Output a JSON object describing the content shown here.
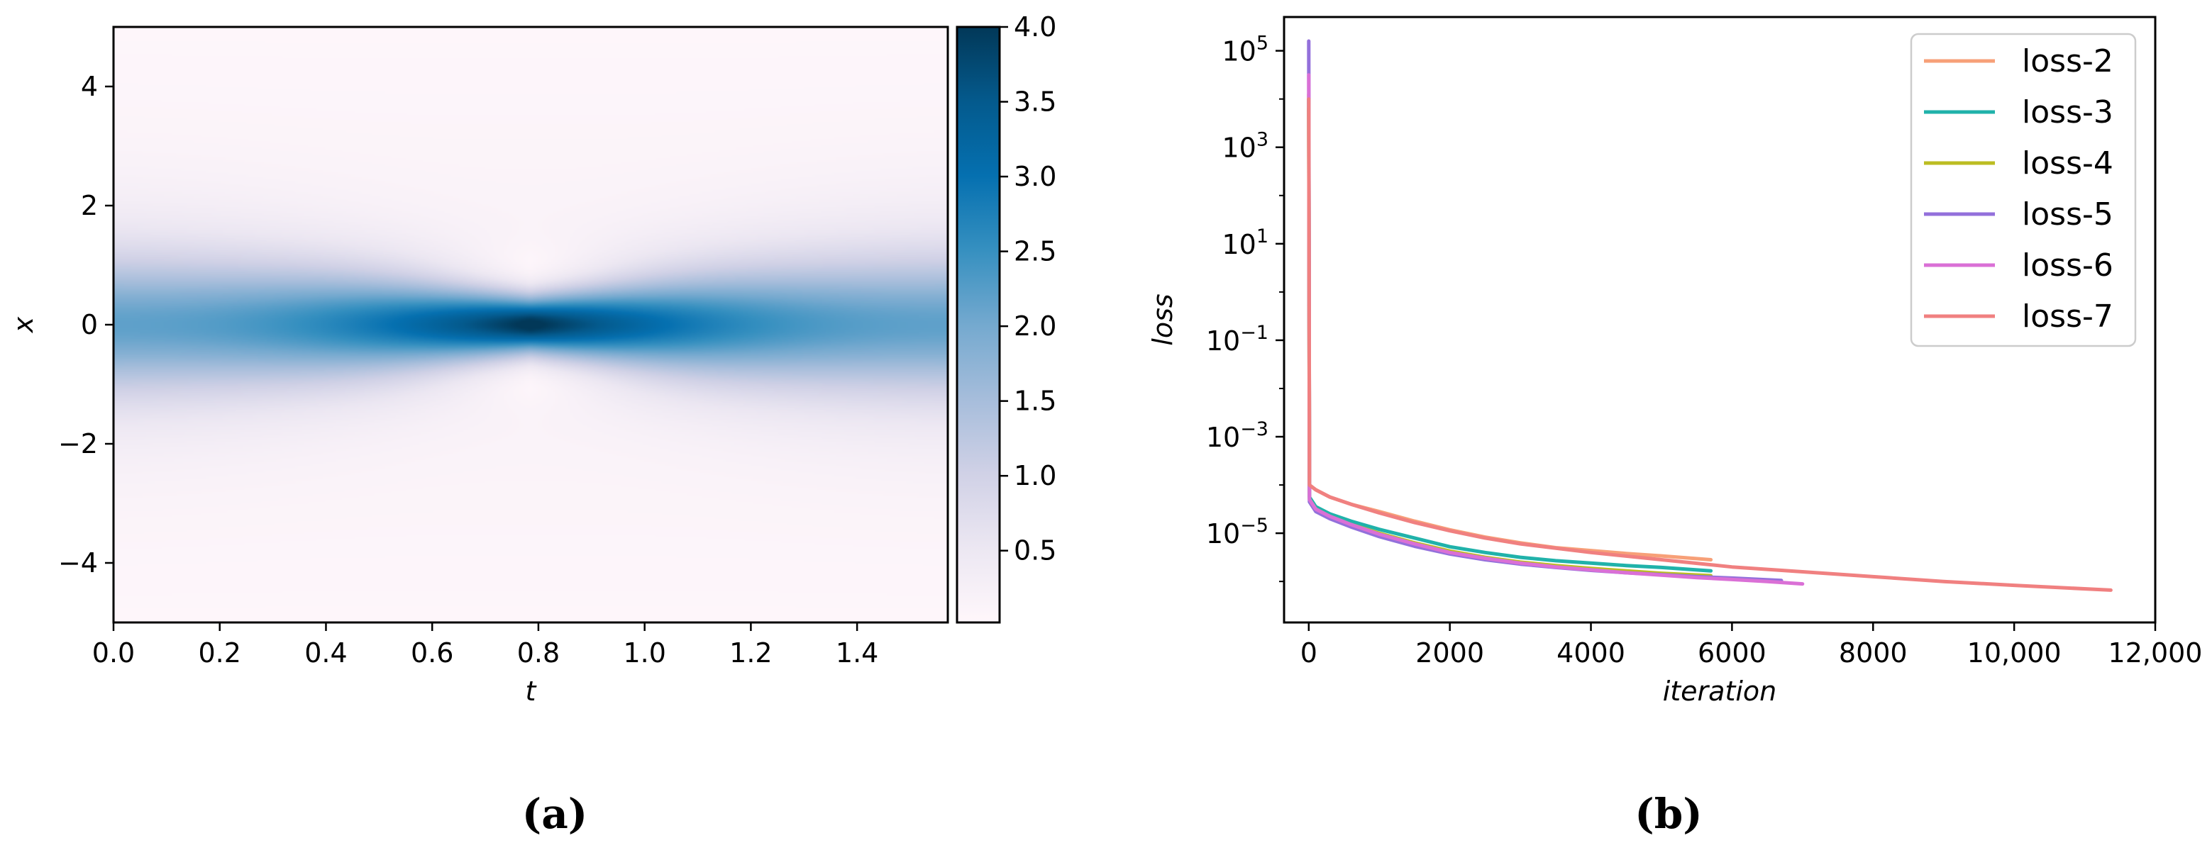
{
  "chart_data": [
    {
      "type": "heatmap",
      "panel_label": "(a)",
      "xlabel": "t",
      "ylabel": "x",
      "xlim": [
        0,
        1.5708
      ],
      "ylim": [
        -5,
        5
      ],
      "xticks": [
        "0.0",
        "0.2",
        "0.4",
        "0.6",
        "0.8",
        "1.0",
        "1.2",
        "1.4"
      ],
      "xtick_values": [
        0,
        0.2,
        0.4,
        0.6,
        0.8,
        1.0,
        1.2,
        1.4
      ],
      "yticks": [
        "4",
        "2",
        "0",
        "−2",
        "−4"
      ],
      "ytick_values": [
        4,
        2,
        0,
        -2,
        -4
      ],
      "colorbar": {
        "colormap": "PuBu",
        "range": [
          0.02,
          4.0
        ],
        "ticks": [
          "4.0",
          "3.5",
          "3.0",
          "2.5",
          "2.0",
          "1.5",
          "1.0",
          "0.5"
        ],
        "tick_values": [
          4.0,
          3.5,
          3.0,
          2.5,
          2.0,
          1.5,
          1.0,
          0.5
        ]
      },
      "field": {
        "peak_value": 4.0,
        "peak_t": 0.785,
        "peak_x": 0,
        "edge_value": 2.0,
        "description_level_at_t0_x0": 2.0
      },
      "colors": {
        "low": "#fff7fb",
        "mid": "#a6bddb",
        "high": "#023858"
      }
    },
    {
      "type": "line",
      "panel_label": "(b)",
      "xlabel": "iteration",
      "ylabel": "loss",
      "xlim": [
        -350,
        12000
      ],
      "ylim_log10": [
        -6.85,
        5.7
      ],
      "yscale": "log",
      "grid": false,
      "legend_position": "top-right",
      "xticks": [
        "0",
        "2000",
        "4000",
        "6000",
        "8000",
        "10,000",
        "12,000"
      ],
      "xtick_values": [
        0,
        2000,
        4000,
        6000,
        8000,
        10000,
        12000
      ],
      "yticks": [
        {
          "base": "10",
          "exp": "5",
          "value": 5
        },
        {
          "base": "10",
          "exp": "3",
          "value": 3
        },
        {
          "base": "10",
          "exp": "1",
          "value": 1
        },
        {
          "base": "10",
          "exp": "−1",
          "value": -1
        },
        {
          "base": "10",
          "exp": "−3",
          "value": -3
        },
        {
          "base": "10",
          "exp": "−5",
          "value": -5
        }
      ],
      "series": [
        {
          "name": "loss-2",
          "color": "#f7a078",
          "x": [
            0,
            10,
            100,
            300,
            600,
            1000,
            1500,
            2000,
            2500,
            3000,
            3500,
            4000,
            4500,
            5000,
            5700
          ],
          "y_log10": [
            4.1,
            -4.0,
            -4.1,
            -4.25,
            -4.4,
            -4.55,
            -4.75,
            -4.93,
            -5.08,
            -5.2,
            -5.3,
            -5.36,
            -5.42,
            -5.47,
            -5.55
          ]
        },
        {
          "name": "loss-3",
          "color": "#20b2aa",
          "x": [
            0,
            10,
            100,
            300,
            600,
            1000,
            1500,
            2000,
            2500,
            3000,
            3500,
            4000,
            4500,
            5000,
            5700
          ],
          "y_log10": [
            4.0,
            -4.25,
            -4.45,
            -4.6,
            -4.75,
            -4.92,
            -5.1,
            -5.28,
            -5.4,
            -5.5,
            -5.57,
            -5.62,
            -5.67,
            -5.71,
            -5.78
          ]
        },
        {
          "name": "loss-4",
          "color": "#bcbd22",
          "x": [
            0,
            10,
            100,
            300,
            600,
            1000,
            1500,
            2000,
            2500,
            3000,
            3500,
            4000,
            4500,
            5000,
            5700
          ],
          "y_log10": [
            3.8,
            -4.3,
            -4.5,
            -4.65,
            -4.82,
            -5.0,
            -5.2,
            -5.37,
            -5.5,
            -5.6,
            -5.67,
            -5.73,
            -5.78,
            -5.83,
            -5.88
          ]
        },
        {
          "name": "loss-5",
          "color": "#9370db",
          "x": [
            0,
            10,
            100,
            300,
            600,
            1000,
            1500,
            2000,
            2500,
            3000,
            3500,
            4000,
            4500,
            5000,
            5500,
            6000,
            6700
          ],
          "y_log10": [
            5.2,
            -4.35,
            -4.55,
            -4.7,
            -4.87,
            -5.07,
            -5.27,
            -5.43,
            -5.55,
            -5.64,
            -5.71,
            -5.77,
            -5.82,
            -5.86,
            -5.9,
            -5.93,
            -5.98
          ]
        },
        {
          "name": "loss-6",
          "color": "#da70d6",
          "x": [
            0,
            10,
            100,
            300,
            600,
            1000,
            1500,
            2000,
            2500,
            3000,
            3500,
            4000,
            4500,
            5000,
            5500,
            6000,
            6500,
            7000
          ],
          "y_log10": [
            4.5,
            -4.3,
            -4.5,
            -4.65,
            -4.82,
            -5.02,
            -5.22,
            -5.4,
            -5.52,
            -5.62,
            -5.7,
            -5.76,
            -5.82,
            -5.87,
            -5.92,
            -5.96,
            -6.0,
            -6.05
          ]
        },
        {
          "name": "loss-7",
          "color": "#f08080",
          "x": [
            0,
            10,
            100,
            300,
            600,
            1000,
            1500,
            2000,
            2500,
            3000,
            4000,
            5000,
            6000,
            7000,
            8000,
            9000,
            10000,
            11370
          ],
          "y_log10": [
            4.0,
            -4.0,
            -4.1,
            -4.25,
            -4.4,
            -4.58,
            -4.78,
            -4.95,
            -5.1,
            -5.22,
            -5.4,
            -5.55,
            -5.7,
            -5.8,
            -5.9,
            -6.0,
            -6.08,
            -6.18
          ]
        }
      ]
    }
  ]
}
